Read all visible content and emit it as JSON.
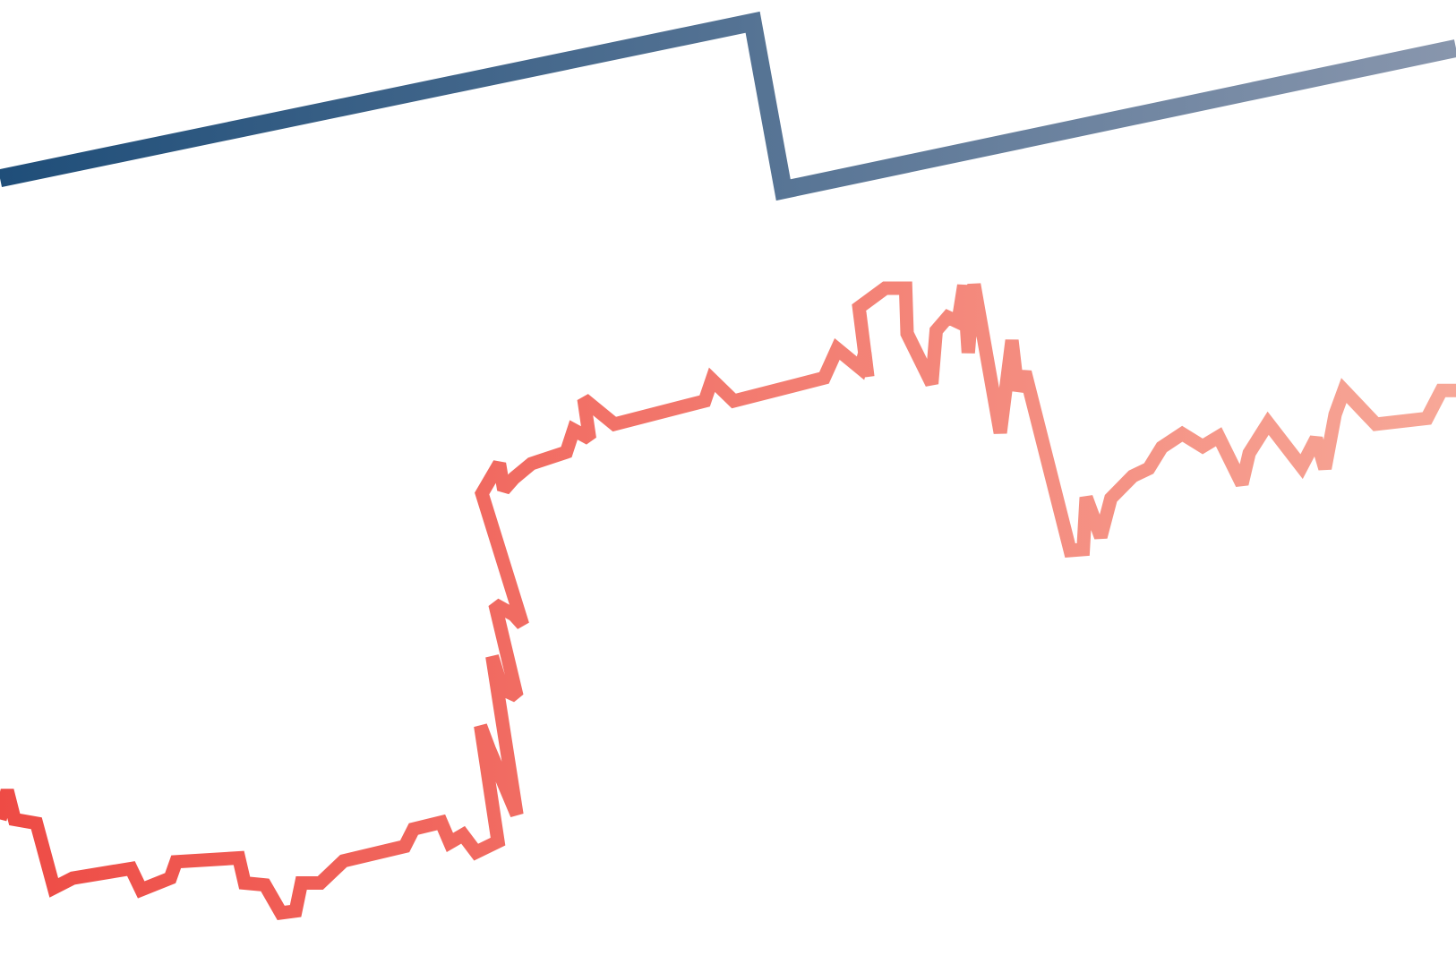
{
  "chart_data": {
    "type": "line",
    "title": "",
    "xlabel": "",
    "ylabel": "",
    "grid": false,
    "legend": "none",
    "xlim": [
      0,
      100
    ],
    "ylim": [
      0,
      100
    ],
    "series": [
      {
        "color_start": "#1f4e79",
        "color_end": "#8896ad",
        "points": [
          [
            0,
            81.5
          ],
          [
            51.7,
            97.7
          ],
          [
            53.8,
            80.3
          ],
          [
            100,
            95.0
          ]
        ]
      },
      {
        "color_start": "#ee4b45",
        "color_end": "#f7a898",
        "points": [
          [
            0,
            15.0
          ],
          [
            0.5,
            18.0
          ],
          [
            1.0,
            15.0
          ],
          [
            2.5,
            14.6
          ],
          [
            3.7,
            7.9
          ],
          [
            5.0,
            8.9
          ],
          [
            9.0,
            9.9
          ],
          [
            9.7,
            7.7
          ],
          [
            11.7,
            8.9
          ],
          [
            12.1,
            10.6
          ],
          [
            16.4,
            11.0
          ],
          [
            16.8,
            8.4
          ],
          [
            18.2,
            8.2
          ],
          [
            19.3,
            5.3
          ],
          [
            20.3,
            5.5
          ],
          [
            20.7,
            8.4
          ],
          [
            22.0,
            8.4
          ],
          [
            23.6,
            10.7
          ],
          [
            27.8,
            12.2
          ],
          [
            28.4,
            14.0
          ],
          [
            30.3,
            14.7
          ],
          [
            30.9,
            12.6
          ],
          [
            31.8,
            13.4
          ],
          [
            32.7,
            11.6
          ],
          [
            34.2,
            12.7
          ],
          [
            33.0,
            24.7
          ],
          [
            33.6,
            22.3
          ],
          [
            35.5,
            15.5
          ],
          [
            33.8,
            31.9
          ],
          [
            34.5,
            28.5
          ],
          [
            35.5,
            27.8
          ],
          [
            34.0,
            37.3
          ],
          [
            35.3,
            36.2
          ],
          [
            35.9,
            35.2
          ],
          [
            33.1,
            48.8
          ],
          [
            34.3,
            51.9
          ],
          [
            34.6,
            49.2
          ],
          [
            35.3,
            50.4
          ],
          [
            36.5,
            51.9
          ],
          [
            38.9,
            53.1
          ],
          [
            39.4,
            55.4
          ],
          [
            40.5,
            54.5
          ],
          [
            40.1,
            58.6
          ],
          [
            42.2,
            56.0
          ],
          [
            48.4,
            58.4
          ],
          [
            48.9,
            60.6
          ],
          [
            50.4,
            58.4
          ],
          [
            56.6,
            60.8
          ],
          [
            57.5,
            63.8
          ],
          [
            59.1,
            61.8
          ],
          [
            59.4,
            63.4
          ],
          [
            59.6,
            60.9
          ],
          [
            59.0,
            68.1
          ],
          [
            60.8,
            70.1
          ],
          [
            62.2,
            70.1
          ],
          [
            62.3,
            65.4
          ],
          [
            64.0,
            60.2
          ],
          [
            64.3,
            65.7
          ],
          [
            65.1,
            67.1
          ],
          [
            65.8,
            66.6
          ],
          [
            66.2,
            70.4
          ],
          [
            66.5,
            63.4
          ],
          [
            66.9,
            70.5
          ],
          [
            68.7,
            55.1
          ],
          [
            69.5,
            64.7
          ],
          [
            69.9,
            59.5
          ],
          [
            70.4,
            61.4
          ],
          [
            73.5,
            42.9
          ],
          [
            74.4,
            43.0
          ],
          [
            74.6,
            48.4
          ],
          [
            75.6,
            44.3
          ],
          [
            76.3,
            48.3
          ],
          [
            77.8,
            50.6
          ],
          [
            78.9,
            51.4
          ],
          [
            79.8,
            53.6
          ],
          [
            81.2,
            55.0
          ],
          [
            82.6,
            53.7
          ],
          [
            83.7,
            54.7
          ],
          [
            85.3,
            49.8
          ],
          [
            85.8,
            53.0
          ],
          [
            87.1,
            56.1
          ],
          [
            89.4,
            51.6
          ],
          [
            90.4,
            54.5
          ],
          [
            91.0,
            51.4
          ],
          [
            91.7,
            57.0
          ],
          [
            92.3,
            59.5
          ],
          [
            94.5,
            56.0
          ],
          [
            98.0,
            56.6
          ],
          [
            99.0,
            59.5
          ],
          [
            100,
            59.5
          ]
        ]
      }
    ]
  }
}
